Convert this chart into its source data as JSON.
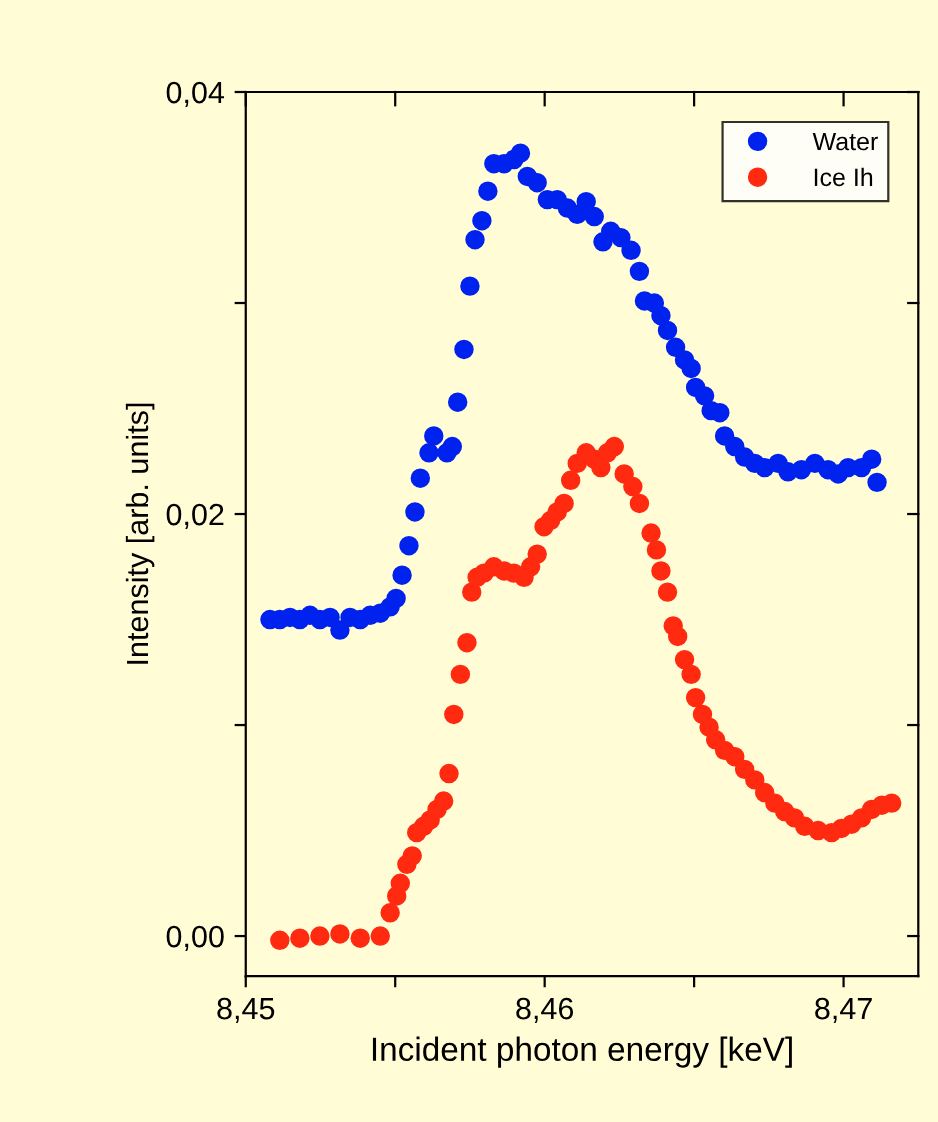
{
  "chart_data": {
    "type": "scatter",
    "xlabel": "Incident photon energy [keV]",
    "ylabel": "Intensity [arb. units]",
    "xlim": [
      8.45,
      8.4725
    ],
    "ylim": [
      -0.0019,
      0.04
    ],
    "xticks": [
      {
        "value": 8.45,
        "label": "8,45"
      },
      {
        "value": 8.455,
        "label": null
      },
      {
        "value": 8.46,
        "label": "8,46"
      },
      {
        "value": 8.465,
        "label": null
      },
      {
        "value": 8.47,
        "label": "8,47"
      }
    ],
    "yticks": [
      {
        "value": 0.0,
        "label": "0,00"
      },
      {
        "value": 0.01,
        "label": null
      },
      {
        "value": 0.02,
        "label": "0,02"
      },
      {
        "value": 0.03,
        "label": null
      },
      {
        "value": 0.04,
        "label": "0,04"
      }
    ],
    "grid": false,
    "legend": "top right",
    "marker": "circle",
    "series": [
      {
        "name": "Water",
        "color": "#0022ee",
        "x": [
          8.45081,
          8.45114,
          8.45148,
          8.45181,
          8.45215,
          8.45248,
          8.45282,
          8.45315,
          8.45349,
          8.45383,
          8.45416,
          8.4545,
          8.45483,
          8.45503,
          8.45523,
          8.45546,
          8.45566,
          8.45584,
          8.45613,
          8.45629,
          8.45673,
          8.45691,
          8.45709,
          8.4573,
          8.4575,
          8.45767,
          8.4579,
          8.4581,
          8.4583,
          8.45864,
          8.45897,
          8.45919,
          8.45942,
          8.45975,
          8.46009,
          8.46042,
          8.46076,
          8.46109,
          8.46139,
          8.46166,
          8.46195,
          8.46221,
          8.46255,
          8.46289,
          8.46317,
          8.46334,
          8.46367,
          8.46389,
          8.46411,
          8.46438,
          8.46468,
          8.4649,
          8.46505,
          8.46535,
          8.46557,
          8.46586,
          8.46602,
          8.46636,
          8.46669,
          8.46703,
          8.46736,
          8.46781,
          8.46814,
          8.46859,
          8.46904,
          8.46948,
          8.46982,
          8.47015,
          8.4706,
          8.47094,
          8.47112
        ],
        "values": [
          0.015,
          0.015,
          0.0151,
          0.015,
          0.0152,
          0.015,
          0.0151,
          0.0145,
          0.0151,
          0.015,
          0.0152,
          0.0153,
          0.0156,
          0.016,
          0.0171,
          0.0185,
          0.0201,
          0.0217,
          0.0229,
          0.0237,
          0.0229,
          0.0232,
          0.0253,
          0.0278,
          0.0308,
          0.033,
          0.0339,
          0.0353,
          0.0366,
          0.0366,
          0.0368,
          0.0371,
          0.036,
          0.0357,
          0.0349,
          0.0349,
          0.0345,
          0.0342,
          0.0348,
          0.0341,
          0.0329,
          0.0334,
          0.0331,
          0.0325,
          0.0315,
          0.0301,
          0.03,
          0.0294,
          0.0287,
          0.0279,
          0.0273,
          0.0269,
          0.026,
          0.0256,
          0.0249,
          0.0248,
          0.0237,
          0.0232,
          0.0227,
          0.0224,
          0.0222,
          0.0224,
          0.022,
          0.0221,
          0.0224,
          0.0221,
          0.0219,
          0.0222,
          0.0222,
          0.0226,
          0.0215
        ],
        "errors": [
          0.0002,
          0.0002,
          0.0002,
          0.0002,
          0.0002,
          0.0002,
          0.0002,
          0.0002,
          0.0002,
          0.0002,
          0.0002,
          0.0002,
          0.0002,
          0.0002,
          0.0002,
          0.0002,
          0.0002,
          0.0002,
          0.0002,
          0.0002,
          0.0002,
          0.0002,
          0.0002,
          0.0002,
          0.0002,
          0.0002,
          0.0002,
          0.0002,
          0.0002,
          0.0002,
          0.0002,
          0.0002,
          0.0002,
          0.0002,
          0.0002,
          0.0002,
          0.0002,
          0.0002,
          0.0002,
          0.0002,
          0.0002,
          0.0002,
          0.0002,
          0.0002,
          0.0002,
          0.0002,
          0.0002,
          0.0002,
          0.0002,
          0.0002,
          0.0002,
          0.0002,
          0.0002,
          0.0002,
          0.0002,
          0.0002,
          0.0002,
          0.0002,
          0.0002,
          0.0002,
          0.0002,
          0.0002,
          0.0002,
          0.0002,
          0.0002,
          0.0002,
          0.0002,
          0.0002,
          0.0002,
          0.0002,
          0.0002
        ]
      },
      {
        "name": "Ice Ih",
        "color": "#ff2a10",
        "x": [
          8.45114,
          8.45181,
          8.45248,
          8.45315,
          8.45383,
          8.4545,
          8.45483,
          8.45505,
          8.45517,
          8.45539,
          8.45557,
          8.45572,
          8.45595,
          8.45617,
          8.4564,
          8.45662,
          8.4568,
          8.45696,
          8.45718,
          8.4574,
          8.45756,
          8.45774,
          8.45797,
          8.4583,
          8.45864,
          8.45897,
          8.45931,
          8.45953,
          8.45975,
          8.45998,
          8.4602,
          8.46042,
          8.46065,
          8.46087,
          8.46109,
          8.46139,
          8.46166,
          8.46188,
          8.4621,
          8.46233,
          8.46266,
          8.46295,
          8.46317,
          8.46356,
          8.46374,
          8.46389,
          8.46411,
          8.4643,
          8.46445,
          8.46468,
          8.4649,
          8.46505,
          8.46528,
          8.4655,
          8.46572,
          8.46602,
          8.46636,
          8.46669,
          8.46703,
          8.46736,
          8.4677,
          8.46803,
          8.46836,
          8.4687,
          8.46915,
          8.4696,
          8.46993,
          8.47027,
          8.4706,
          8.47094,
          8.47128,
          8.47161
        ],
        "values": [
          -0.0002,
          -0.0001,
          0.0,
          0.0001,
          -0.0001,
          0.0,
          0.0011,
          0.0019,
          0.0025,
          0.0034,
          0.0038,
          0.0049,
          0.0052,
          0.0055,
          0.006,
          0.0064,
          0.0077,
          0.0105,
          0.0124,
          0.0139,
          0.0163,
          0.017,
          0.0172,
          0.0175,
          0.0173,
          0.0172,
          0.017,
          0.0175,
          0.0181,
          0.0194,
          0.0197,
          0.0201,
          0.0205,
          0.0216,
          0.0224,
          0.0229,
          0.0226,
          0.0222,
          0.0229,
          0.0232,
          0.0219,
          0.0213,
          0.0205,
          0.0191,
          0.0183,
          0.0173,
          0.0163,
          0.0147,
          0.0142,
          0.0131,
          0.0124,
          0.0113,
          0.0105,
          0.0099,
          0.0093,
          0.0088,
          0.0085,
          0.0079,
          0.0074,
          0.0068,
          0.0063,
          0.0059,
          0.0056,
          0.0052,
          0.005,
          0.0049,
          0.0051,
          0.0053,
          0.0056,
          0.006,
          0.0062,
          0.0063
        ],
        "errors": [
          0.0003,
          0.0003,
          0.0003,
          0.0003,
          0.0003,
          0.0003,
          0.0003,
          0.0003,
          0.0003,
          0.0003,
          0.0003,
          0.0003,
          0.0003,
          0.0003,
          0.0003,
          0.0003,
          0.0003,
          0.0003,
          0.0003,
          0.0003,
          0.0003,
          0.0003,
          0.0003,
          0.0003,
          0.0003,
          0.0003,
          0.0003,
          0.0003,
          0.0003,
          0.0003,
          0.0003,
          0.0003,
          0.0003,
          0.0003,
          0.0003,
          0.0003,
          0.0003,
          0.0003,
          0.0003,
          0.0003,
          0.0003,
          0.0003,
          0.0003,
          0.0003,
          0.0003,
          0.0003,
          0.0003,
          0.0003,
          0.0003,
          0.0003,
          0.0003,
          0.0003,
          0.0003,
          0.0003,
          0.0003,
          0.0003,
          0.0003,
          0.0003,
          0.0003,
          0.0003,
          0.0003,
          0.0003,
          0.0003,
          0.0003,
          0.0003,
          0.0003,
          0.0003,
          0.0003,
          0.0003,
          0.0003,
          0.0003,
          0.0003
        ]
      }
    ]
  }
}
